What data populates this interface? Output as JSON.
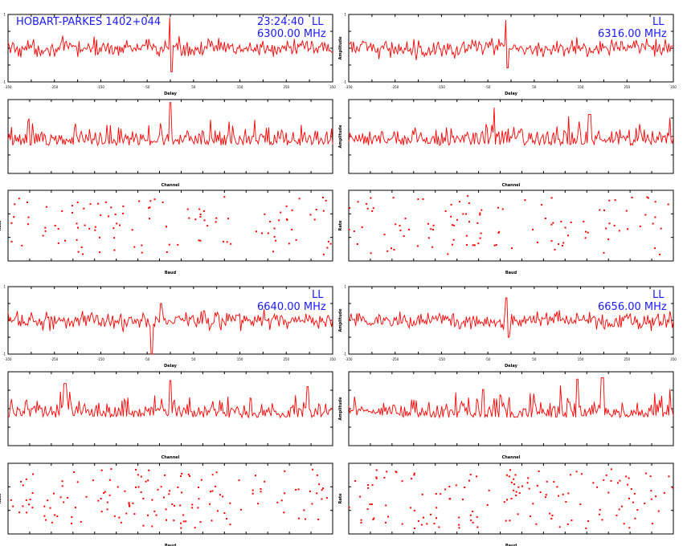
{
  "header": {
    "source": "HOBART-PARKES  1402+044",
    "time": "23:24:40",
    "pol": "LL"
  },
  "panel_sets": [
    {
      "freq": "6300.00  MHz",
      "show_source": true,
      "show_time": true
    },
    {
      "freq": "6316.00  MHz",
      "show_source": false,
      "show_time": false
    },
    {
      "freq": "6640.00  MHz",
      "show_source": false,
      "show_time": false
    },
    {
      "freq": "6656.00  MHz",
      "show_source": false,
      "show_time": false
    }
  ],
  "axis_labels": {
    "delay": "Delay",
    "channel": "Channel",
    "baud": "Baud",
    "amplitude": "Amplitude",
    "rate": "Rate"
  },
  "colors": {
    "trace": "#ff0000",
    "annotation": "#1a1aff",
    "axis": "#000000"
  },
  "chart_data": [
    {
      "type": "line",
      "kind": "delay",
      "set": 0,
      "ylabel": "",
      "xlabel": "Delay",
      "xlim": [
        -350,
        350
      ],
      "ylim": [
        -6,
        6
      ],
      "x_ticks": [
        "-350",
        "",
        "-250",
        "",
        "-150",
        "",
        "-50",
        "",
        "50",
        "",
        "150",
        "",
        "250",
        "",
        "350"
      ],
      "y_ticks": [
        "-1",
        "",
        "",
        "",
        "1"
      ],
      "spikes": [
        {
          "x": 0,
          "y": 5.5
        },
        {
          "x": 2,
          "y": -4.2
        }
      ]
    },
    {
      "type": "line",
      "kind": "delay",
      "set": 1,
      "ylabel": "Amplitude",
      "xlabel": "Delay",
      "xlim": [
        -350,
        350
      ],
      "ylim": [
        -6,
        6
      ],
      "x_ticks": [
        "-350",
        "",
        "-250",
        "",
        "-150",
        "",
        "-50",
        "",
        "50",
        "",
        "150",
        "",
        "250",
        "",
        "350"
      ],
      "y_ticks": [
        "-1",
        "",
        "",
        "",
        "1"
      ],
      "spikes": [
        {
          "x": -10,
          "y": 5.0
        },
        {
          "x": -8,
          "y": -3.5
        }
      ]
    },
    {
      "type": "line",
      "kind": "delay",
      "set": 2,
      "ylabel": "",
      "xlabel": "Delay",
      "xlim": [
        -350,
        350
      ],
      "ylim": [
        -6,
        6
      ],
      "x_ticks": [
        "-350",
        "",
        "-250",
        "",
        "-150",
        "",
        "-50",
        "",
        "50",
        "",
        "150",
        "",
        "250",
        "",
        "350"
      ],
      "y_ticks": [
        "-1",
        "",
        "",
        "",
        "1"
      ],
      "spikes": [
        {
          "x": -40,
          "y": -6.0
        },
        {
          "x": -20,
          "y": 3.0
        }
      ]
    },
    {
      "type": "line",
      "kind": "delay",
      "set": 3,
      "ylabel": "Amplitude",
      "xlabel": "Delay",
      "xlim": [
        -350,
        350
      ],
      "ylim": [
        -6,
        6
      ],
      "x_ticks": [
        "-350",
        "",
        "-250",
        "",
        "-150",
        "",
        "-50",
        "",
        "50",
        "",
        "150",
        "",
        "250",
        "",
        "350"
      ],
      "y_ticks": [
        "-1",
        "",
        "",
        "",
        "1"
      ],
      "spikes": [
        {
          "x": -10,
          "y": 4.0
        },
        {
          "x": -5,
          "y": -3.0
        }
      ]
    },
    {
      "type": "line",
      "kind": "channel",
      "set": 0,
      "ylabel": "",
      "xlabel": "Channel",
      "xlim": [
        0,
        256
      ],
      "ylim": [
        0,
        5
      ],
      "x_ticks": [
        "",
        "",
        "",
        "",
        "",
        "",
        "",
        "",
        "",
        "",
        "",
        "",
        "",
        "",
        "",
        ""
      ],
      "y_ticks": [
        "",
        "",
        "",
        "",
        ""
      ],
      "spikes": [
        {
          "x": 128,
          "y": 4.8
        }
      ]
    },
    {
      "type": "line",
      "kind": "channel",
      "set": 1,
      "ylabel": "Amplitude",
      "xlabel": "Channel",
      "xlim": [
        0,
        256
      ],
      "ylim": [
        0,
        5
      ],
      "x_ticks": [
        "",
        "",
        "",
        "",
        "",
        "",
        "",
        "",
        "",
        "",
        "",
        "",
        "",
        "",
        "",
        ""
      ],
      "y_ticks": [
        "",
        "",
        "",
        "",
        ""
      ],
      "spikes": [
        {
          "x": 190,
          "y": 4.0
        }
      ]
    },
    {
      "type": "line",
      "kind": "channel",
      "set": 2,
      "ylabel": "",
      "xlabel": "Channel",
      "xlim": [
        0,
        256
      ],
      "ylim": [
        0,
        5
      ],
      "x_ticks": [
        "",
        "",
        "",
        "",
        "",
        "",
        "",
        "",
        "",
        "",
        "",
        "",
        "",
        "",
        "",
        ""
      ],
      "y_ticks": [
        "",
        "",
        "",
        "",
        ""
      ],
      "spikes": [
        {
          "x": 128,
          "y": 4.4
        },
        {
          "x": 45,
          "y": 4.2
        },
        {
          "x": 236,
          "y": 4.0
        }
      ]
    },
    {
      "type": "line",
      "kind": "channel",
      "set": 3,
      "ylabel": "Amplitude",
      "xlabel": "Channel",
      "xlim": [
        0,
        256
      ],
      "ylim": [
        0,
        5
      ],
      "x_ticks": [
        "",
        "",
        "",
        "",
        "",
        "",
        "",
        "",
        "",
        "",
        "",
        "",
        "",
        "",
        "",
        ""
      ],
      "y_ticks": [
        "",
        "",
        "",
        "",
        ""
      ],
      "spikes": [
        {
          "x": 180,
          "y": 4.5
        },
        {
          "x": 200,
          "y": 4.6
        },
        {
          "x": 106,
          "y": 3.8
        }
      ]
    },
    {
      "type": "scatter",
      "kind": "baud",
      "set": 0,
      "ylabel": "Rate",
      "xlabel": "Baud",
      "xlim": [
        0,
        36
      ],
      "ylim": [
        0,
        4
      ],
      "x_ticks": [
        "",
        "",
        "",
        "",
        "",
        "",
        "",
        "",
        "",
        "",
        "",
        "",
        "",
        "",
        "",
        ""
      ],
      "y_ticks": [
        "",
        "",
        "",
        ""
      ],
      "points": 110
    },
    {
      "type": "scatter",
      "kind": "baud",
      "set": 1,
      "ylabel": "Rate",
      "xlabel": "Baud",
      "xlim": [
        0,
        36
      ],
      "ylim": [
        0,
        4
      ],
      "x_ticks": [
        "",
        "",
        "",
        "",
        "",
        "",
        "",
        "",
        "",
        "",
        "",
        "",
        "",
        "",
        "",
        ""
      ],
      "y_ticks": [
        "",
        "",
        "",
        ""
      ],
      "points": 110
    },
    {
      "type": "scatter",
      "kind": "baud",
      "set": 2,
      "ylabel": "Rate",
      "xlabel": "Baud",
      "xlim": [
        0,
        36
      ],
      "ylim": [
        0,
        4
      ],
      "x_ticks": [
        "",
        "",
        "",
        "",
        "",
        "",
        "",
        "",
        "",
        "",
        "",
        "",
        "",
        "",
        "",
        ""
      ],
      "y_ticks": [
        "",
        "",
        "",
        ""
      ],
      "points": 150
    },
    {
      "type": "scatter",
      "kind": "baud",
      "set": 3,
      "ylabel": "Rate",
      "xlabel": "Baud",
      "xlim": [
        0,
        36
      ],
      "ylim": [
        0,
        4
      ],
      "x_ticks": [
        "",
        "",
        "",
        "",
        "",
        "",
        "",
        "",
        "",
        "",
        "",
        "",
        "",
        "",
        "",
        ""
      ],
      "y_ticks": [
        "",
        "",
        "",
        ""
      ],
      "points": 150
    }
  ]
}
